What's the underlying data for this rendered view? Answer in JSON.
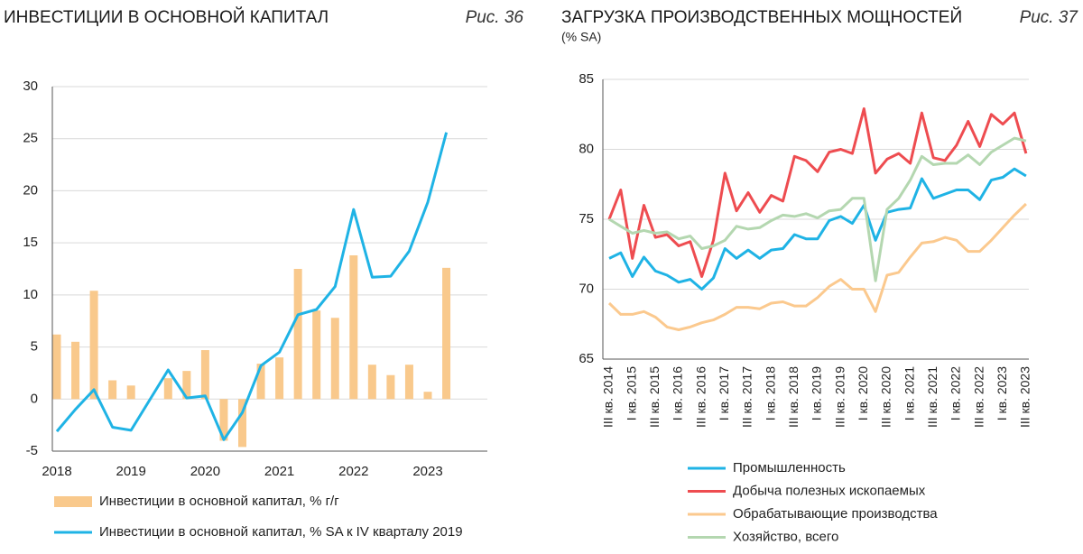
{
  "chart_data": [
    {
      "type": "combo",
      "title": "ИНВЕСТИЦИИ В ОСНОВНОЙ КАПИТАЛ",
      "figure_label": "Рис. 36",
      "categories": [
        "2018",
        null,
        null,
        null,
        "2019",
        null,
        null,
        null,
        "2020",
        null,
        null,
        null,
        "2021",
        null,
        null,
        null,
        "2022",
        null,
        null,
        null,
        "2023",
        null
      ],
      "series": [
        {
          "name": "Инвестиции в основной капитал, % г/г",
          "type": "bar",
          "color": "#f9c98c",
          "values": [
            6.2,
            5.5,
            10.4,
            1.8,
            1.3,
            0,
            2.0,
            2.7,
            4.7,
            -4.0,
            -4.6,
            3.4,
            4.0,
            12.5,
            8.5,
            7.8,
            13.8,
            3.3,
            2.3,
            3.3,
            0.7,
            12.6
          ]
        },
        {
          "name": "Инвестиции в основной капитал, % SA к IV кварталу 2019",
          "type": "line",
          "color": "#1fb3e5",
          "values": [
            -3.1,
            -1.0,
            0.9,
            -2.7,
            -3.0,
            -0.1,
            2.8,
            0.1,
            0.3,
            -3.9,
            -1.3,
            3.2,
            4.5,
            8.1,
            8.6,
            10.8,
            18.2,
            11.7,
            11.8,
            14.2,
            18.9,
            25.6
          ]
        }
      ],
      "ylim": [
        -5,
        30
      ],
      "yticks": [
        -5,
        0,
        5,
        10,
        15,
        20,
        25,
        30
      ],
      "grid": true
    },
    {
      "type": "line",
      "title": "ЗАГРУЗКА ПРОИЗВОДСТВЕННЫХ МОЩНОСТЕЙ",
      "subtitle": "(% SA)",
      "figure_label": "Рис. 37",
      "categories": [
        "III кв. 2014",
        null,
        "I кв. 2015",
        null,
        "III кв. 2015",
        null,
        "I кв. 2016",
        null,
        "III кв. 2016",
        null,
        "I кв. 2017",
        null,
        "III кв. 2017",
        null,
        "I кв. 2018",
        null,
        "III кв. 2018",
        null,
        "I кв. 2019",
        null,
        "III кв. 2019",
        null,
        "I кв. 2020",
        null,
        "III кв. 2020",
        null,
        "I кв. 2021",
        null,
        "III кв. 2021",
        null,
        "I кв. 2022",
        null,
        "III кв. 2022",
        null,
        "I кв. 2023",
        null,
        "III кв. 2023"
      ],
      "series": [
        {
          "name": "Промышленность",
          "color": "#1fb3e5",
          "values": [
            72.2,
            72.6,
            70.9,
            72.3,
            71.3,
            71.0,
            70.5,
            70.7,
            70.0,
            70.8,
            72.9,
            72.2,
            72.8,
            72.2,
            72.8,
            72.9,
            73.9,
            73.6,
            73.6,
            74.9,
            75.2,
            74.7,
            76.0,
            73.5,
            75.5,
            75.7,
            75.8,
            77.9,
            76.5,
            76.8,
            77.1,
            77.1,
            76.4,
            77.8,
            78.0,
            78.6,
            78.1
          ]
        },
        {
          "name": "Добыча полезных ископаемых",
          "color": "#ee4c50",
          "values": [
            75.0,
            77.1,
            72.2,
            76.0,
            73.7,
            73.9,
            73.1,
            73.4,
            70.9,
            73.5,
            78.3,
            75.6,
            76.9,
            75.5,
            76.7,
            76.3,
            79.5,
            79.2,
            78.4,
            79.8,
            80.0,
            79.7,
            82.9,
            78.3,
            79.3,
            79.7,
            79.0,
            82.6,
            79.4,
            79.2,
            80.3,
            82.0,
            80.2,
            82.5,
            81.8,
            82.6,
            79.7
          ]
        },
        {
          "name": "Обрабатывающие производства",
          "color": "#fbc98e",
          "values": [
            69.0,
            68.2,
            68.2,
            68.4,
            68.0,
            67.3,
            67.1,
            67.3,
            67.6,
            67.8,
            68.2,
            68.7,
            68.7,
            68.6,
            69.0,
            69.1,
            68.8,
            68.8,
            69.4,
            70.2,
            70.7,
            70.0,
            70.0,
            68.4,
            71.0,
            71.2,
            72.3,
            73.3,
            73.4,
            73.7,
            73.5,
            72.7,
            72.7,
            73.5,
            74.4,
            75.3,
            76.1
          ]
        },
        {
          "name": "Хозяйство, всего",
          "color": "#b4d7b0",
          "values": [
            75.0,
            74.5,
            74.0,
            74.2,
            74.0,
            74.1,
            73.6,
            73.8,
            72.9,
            73.1,
            73.5,
            74.5,
            74.3,
            74.4,
            74.9,
            75.3,
            75.2,
            75.4,
            75.1,
            75.6,
            75.7,
            76.5,
            76.5,
            70.6,
            75.7,
            76.5,
            77.8,
            79.5,
            78.9,
            79.0,
            79.0,
            79.6,
            78.9,
            79.8,
            80.3,
            80.8,
            80.6
          ]
        }
      ],
      "ylim": [
        65,
        85
      ],
      "yticks": [
        65,
        70,
        75,
        80,
        85
      ],
      "grid": true
    }
  ]
}
